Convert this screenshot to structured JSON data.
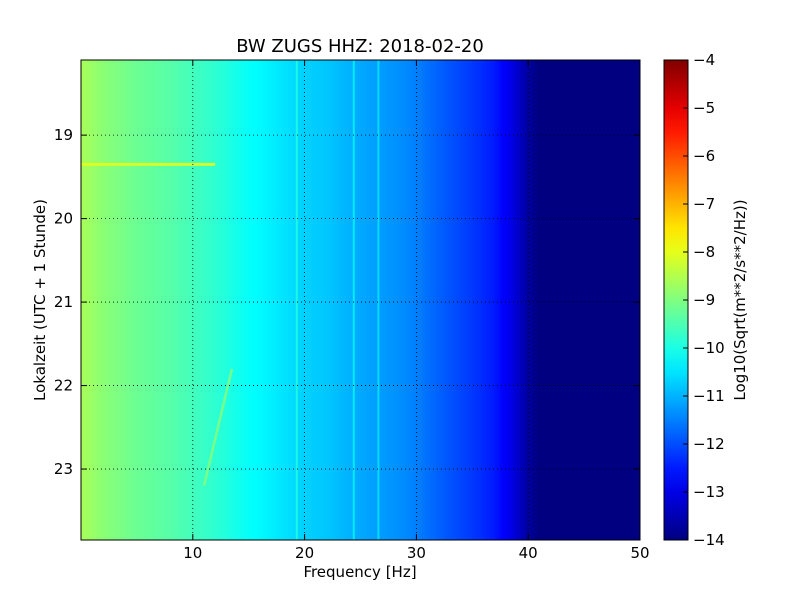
{
  "chart_data": {
    "type": "heatmap",
    "title": "BW ZUGS HHZ: 2018-02-20",
    "xlabel": "Frequency [Hz]",
    "ylabel": "Lokalzeit (UTC + 1 Stunde)",
    "colorbar_label": "Log10(Sqrt(m**2/s**2/Hz))",
    "xlim": [
      0,
      50
    ],
    "ylim": [
      18.1,
      23.85
    ],
    "y_inverted": true,
    "x_ticks": [
      10,
      20,
      30,
      40,
      50
    ],
    "x_tick_labels": [
      "10",
      "20",
      "30",
      "40",
      "50"
    ],
    "y_ticks": [
      19,
      20,
      21,
      22,
      23
    ],
    "y_tick_labels": [
      "19",
      "20",
      "21",
      "22",
      "23"
    ],
    "colorbar_range": [
      -14,
      -4
    ],
    "colorbar_ticks": [
      -4,
      -5,
      -6,
      -7,
      -8,
      -9,
      -10,
      -11,
      -12,
      -13,
      -14
    ],
    "colorbar_tick_labels": [
      "−4",
      "−5",
      "−6",
      "−7",
      "−8",
      "−9",
      "−10",
      "−11",
      "−12",
      "−13",
      "−14"
    ],
    "colormap": "jet",
    "grid": true,
    "grid_style": "dotted",
    "spectrum_profile": {
      "frequency_hz": [
        0,
        2,
        5,
        8,
        10,
        12,
        15,
        18,
        20,
        22,
        25,
        28,
        30,
        32,
        35,
        37,
        38.5,
        40,
        41,
        45,
        50
      ],
      "log_amplitude": [
        -8.6,
        -8.9,
        -9.2,
        -9.4,
        -9.6,
        -9.8,
        -10.2,
        -10.5,
        -10.7,
        -10.8,
        -11.1,
        -11.3,
        -11.5,
        -11.8,
        -12.2,
        -12.5,
        -13.0,
        -13.7,
        -14.0,
        -14.0,
        -14.0
      ]
    },
    "annotations": [
      {
        "text": "narrow spectral line",
        "frequency_hz": 19.3
      },
      {
        "text": "narrow spectral line",
        "frequency_hz": 24.4
      },
      {
        "text": "narrow spectral line",
        "frequency_hz": 26.6
      },
      {
        "text": "time-varying line",
        "frequency_hz": [
          13.5,
          11.0
        ],
        "time_h": [
          21.8,
          23.2
        ]
      },
      {
        "text": "broadband event",
        "time_h": 19.35,
        "frequency_hz": [
          0,
          12
        ]
      }
    ]
  }
}
